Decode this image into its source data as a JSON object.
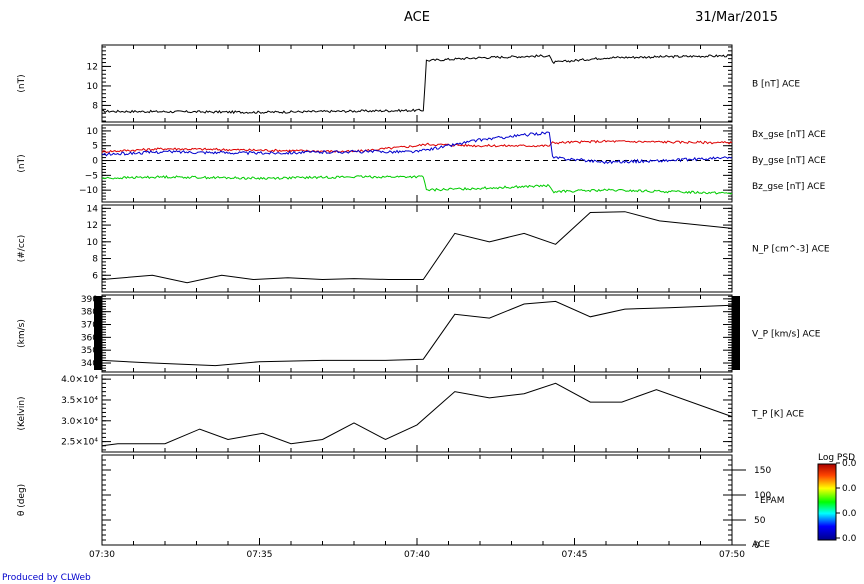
{
  "header": {
    "title": "ACE",
    "date": "31/Mar/2015"
  },
  "footer": "Produced by CLWeb",
  "time_axis": {
    "ticks": [
      "07:30",
      "07:35",
      "07:40",
      "07:45",
      "07:50"
    ]
  },
  "colors": {
    "bx": "#dd0000",
    "by": "#00cc00",
    "bz": "#0000cc",
    "trace": "#000000"
  },
  "chart_data": [
    {
      "type": "line",
      "ylabel": "(nT)",
      "ylim": [
        6.3,
        14.2
      ],
      "yticks": [
        8,
        10,
        12
      ],
      "ytick_labels": [
        "8",
        "10",
        "12"
      ],
      "series": [
        {
          "name": "B [nT] ACE",
          "color": "#000000",
          "noise": 0.12,
          "x": [
            0,
            5,
            10.2,
            10.3,
            12,
            14.2,
            14.3,
            16,
            20
          ],
          "y": [
            7.4,
            7.3,
            7.5,
            12.6,
            12.9,
            13.1,
            12.4,
            12.9,
            13.1
          ]
        }
      ]
    },
    {
      "type": "line",
      "ylabel": "(nT)",
      "ylim": [
        -14,
        12
      ],
      "yticks": [
        -10,
        -5,
        0,
        5,
        10
      ],
      "ytick_labels": [
        "−10",
        "−5",
        "0",
        "5",
        "10"
      ],
      "zero_line": true,
      "series": [
        {
          "name": "Bx_gse [nT] ACE",
          "color": "#dd0000",
          "noise": 0.4,
          "x": [
            0,
            2,
            5,
            8,
            10,
            10.3,
            12,
            14.2,
            14.3,
            16,
            20
          ],
          "y": [
            3,
            4,
            3.5,
            3,
            5,
            5.5,
            5,
            5,
            6,
            6.5,
            6
          ]
        },
        {
          "name": "By_gse [nT] ACE",
          "color": "#00cc00",
          "noise": 0.4,
          "x": [
            0,
            2,
            5,
            8,
            10.2,
            10.3,
            14.2,
            14.3,
            16,
            20
          ],
          "y": [
            -6,
            -5.5,
            -6,
            -5.5,
            -5.5,
            -10,
            -8.5,
            -10.5,
            -10,
            -11
          ]
        },
        {
          "name": "Bz_gse [nT] ACE",
          "color": "#0000cc",
          "noise": 0.5,
          "x": [
            0,
            2,
            5,
            8,
            10,
            12,
            14.2,
            14.3,
            16,
            18,
            20
          ],
          "y": [
            2,
            3,
            2.5,
            3,
            3,
            7,
            9.5,
            1,
            -0.5,
            0,
            1
          ]
        }
      ]
    },
    {
      "type": "line",
      "ylabel": "(#/cc)",
      "ylim": [
        4,
        14.4
      ],
      "yticks": [
        6,
        8,
        10,
        12,
        14
      ],
      "ytick_labels": [
        "6",
        "8",
        "10",
        "12",
        "14"
      ],
      "series": [
        {
          "name": "N_P [cm^-3] ACE",
          "color": "#000000",
          "noise": 0,
          "x": [
            0,
            1.6,
            2.7,
            3.8,
            4.8,
            5.9,
            7,
            8,
            9.1,
            10.2,
            11.2,
            12.3,
            13.4,
            14.4,
            15.5,
            16.6,
            17.7,
            20
          ],
          "y": [
            5.5,
            6,
            5.1,
            6,
            5.5,
            5.7,
            5.5,
            5.6,
            5.5,
            5.5,
            11,
            10,
            11,
            9.7,
            13.5,
            13.6,
            12.5,
            11.6
          ]
        }
      ]
    },
    {
      "type": "line",
      "ylabel": "(km/s)",
      "ylim": [
        333,
        393
      ],
      "yticks": [
        340,
        350,
        360,
        370,
        380,
        390
      ],
      "ytick_labels": [
        "340",
        "350",
        "360",
        "370",
        "380",
        "390"
      ],
      "side_bars": true,
      "series": [
        {
          "name": "V_P [km/s] ACE",
          "color": "#000000",
          "noise": 0,
          "x": [
            0,
            1.6,
            3.6,
            5,
            7,
            9,
            10.2,
            11.2,
            12.3,
            13.4,
            14.4,
            15.5,
            16.6,
            18,
            20
          ],
          "y": [
            342,
            340,
            338,
            341,
            342,
            342,
            343,
            378,
            375,
            386,
            388,
            376,
            382,
            383,
            385
          ]
        }
      ]
    },
    {
      "type": "line",
      "ylabel": "(Kelvin)",
      "ylim": [
        22500,
        41000
      ],
      "yticks": [
        25000,
        30000,
        35000,
        40000
      ],
      "ytick_labels": [
        "2.5×10⁴",
        "3.0×10⁴",
        "3.5×10⁴",
        "4.0×10⁴"
      ],
      "series": [
        {
          "name": "T_P [K] ACE",
          "color": "#000000",
          "noise": 0,
          "x": [
            0,
            0.5,
            2,
            3.1,
            4,
            5.1,
            6,
            7,
            8,
            9,
            10,
            11.2,
            12.3,
            13.4,
            14.4,
            15.5,
            16.5,
            17.6,
            20
          ],
          "y": [
            24000,
            24500,
            24500,
            28000,
            25500,
            27000,
            24500,
            25500,
            29500,
            25500,
            29000,
            37000,
            35500,
            36500,
            39000,
            34500,
            34500,
            37500,
            31000
          ]
        }
      ]
    },
    {
      "type": "heatmap",
      "ylabel": "θ (deg)",
      "ylim": [
        0,
        180
      ],
      "yticks": [
        0,
        50,
        100,
        150
      ],
      "ytick_labels": [
        "0",
        "50",
        "100",
        "150"
      ],
      "right_labels": [
        "ACE",
        "EPAM"
      ],
      "series": []
    }
  ],
  "colorbar": {
    "title": "Log PSD",
    "labels": [
      "0.0",
      "0.0",
      "0.0",
      "0.0"
    ]
  }
}
